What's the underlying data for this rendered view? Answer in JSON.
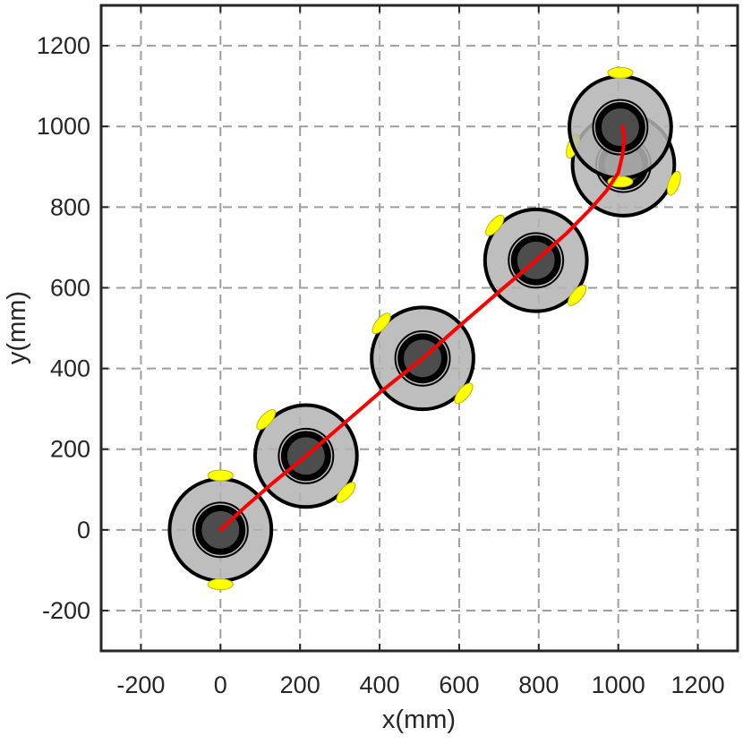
{
  "chart_data": {
    "type": "scatter",
    "title": "",
    "xlabel": "x(mm)",
    "ylabel": "y(mm)",
    "xlim": [
      -300,
      1300
    ],
    "ylim": [
      -300,
      1300
    ],
    "xticks": [
      -200,
      0,
      200,
      400,
      600,
      800,
      1000,
      1200
    ],
    "yticks": [
      -200,
      0,
      200,
      400,
      600,
      800,
      1000,
      1200
    ],
    "xtick_labels": [
      "-200",
      "0",
      "200",
      "400",
      "600",
      "800",
      "1000",
      "1200"
    ],
    "ytick_labels": [
      "-200",
      "0",
      "200",
      "400",
      "600",
      "800",
      "1000",
      "1200"
    ],
    "grid": true,
    "grid_style": "dashed",
    "robots": {
      "outer_radius_mm": 128,
      "inner_radius_mm": 55,
      "wheel_offset_mm": 135,
      "poses": [
        {
          "x": 0,
          "y": 0,
          "heading_deg": 90
        },
        {
          "x": 215,
          "y": 183,
          "heading_deg": 138
        },
        {
          "x": 508,
          "y": 425,
          "heading_deg": 140
        },
        {
          "x": 793,
          "y": 668,
          "heading_deg": 140
        },
        {
          "x": 1013,
          "y": 905,
          "heading_deg": 160
        },
        {
          "x": 1005,
          "y": 998,
          "heading_deg": 90
        }
      ]
    },
    "series": [
      {
        "color": "#ff0000",
        "x": [
          0,
          60,
          130,
          215,
          300,
          400,
          508,
          600,
          700,
          793,
          870,
          930,
          970,
          1000,
          1012,
          1015,
          1010
        ],
        "y": [
          0,
          55,
          115,
          183,
          255,
          340,
          425,
          505,
          590,
          668,
          735,
          795,
          840,
          885,
          935,
          975,
          1000
        ]
      }
    ],
    "colors": {
      "path": "#ff0000",
      "robot_body": "#b3b3b3",
      "robot_core": "#4d4d4d",
      "robot_outline": "#000000",
      "wheels": "#ffff00"
    }
  }
}
